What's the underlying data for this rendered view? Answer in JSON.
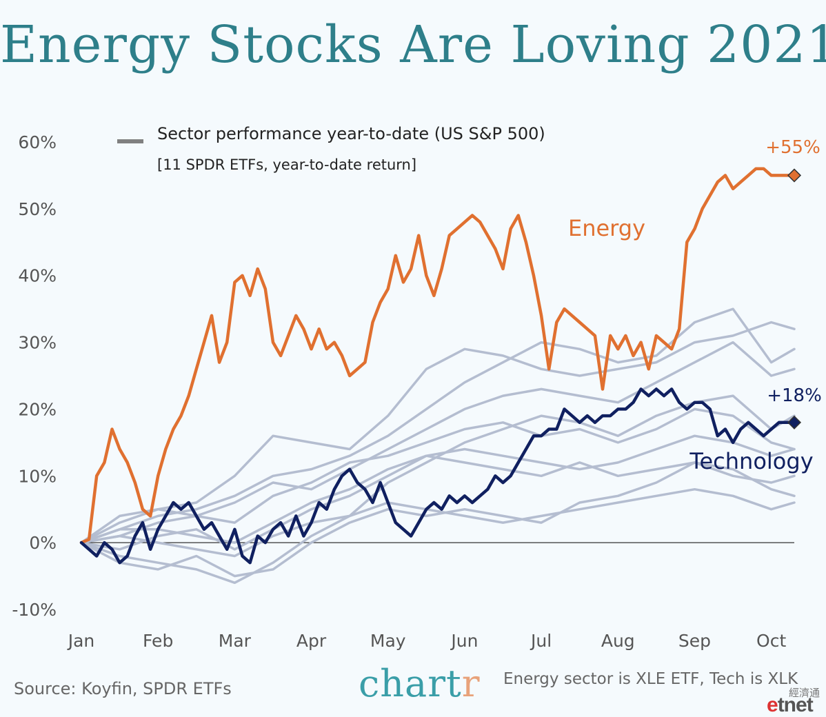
{
  "title": "Energy Stocks Are Loving 2021",
  "legend": {
    "main": "Sector performance year-to-date (US S&P 500)",
    "sub": "[11 SPDR ETFs, year-to-date return]"
  },
  "footer": {
    "source": "Source: Koyfin, SPDR ETFs",
    "brand_main": "chart",
    "brand_accent": "r",
    "note": "Energy sector is XLE ETF, Tech is XLK",
    "watermark_cn": "經濟通",
    "watermark_e": "e",
    "watermark_rest": "tnet"
  },
  "colors": {
    "energy": "#e07030",
    "technology": "#102060",
    "other": "#b4bdd0",
    "title": "#2e7f8a"
  },
  "chart_data": {
    "type": "line",
    "xlabel": "",
    "ylabel": "",
    "y_tick_labels": [
      "-10%",
      "0%",
      "10%",
      "20%",
      "30%",
      "40%",
      "50%",
      "60%"
    ],
    "y_ticks": [
      -10,
      0,
      10,
      20,
      30,
      40,
      50,
      60
    ],
    "ylim": [
      -10,
      60
    ],
    "x_tick_labels": [
      "Jan",
      "Feb",
      "Mar",
      "Apr",
      "May",
      "Jun",
      "Jul",
      "Aug",
      "Sep",
      "Oct"
    ],
    "x_ticks": [
      0,
      1,
      2,
      3,
      4,
      5,
      6,
      7,
      8,
      9
    ],
    "xlim": [
      0,
      9.3
    ],
    "grid": false,
    "zero_line": true,
    "highlighted": [
      {
        "name": "Energy",
        "color": "#e07030",
        "end_label": "+55%",
        "x": [
          0,
          0.1,
          0.2,
          0.3,
          0.4,
          0.5,
          0.6,
          0.7,
          0.8,
          0.9,
          1.0,
          1.1,
          1.2,
          1.3,
          1.4,
          1.5,
          1.6,
          1.7,
          1.8,
          1.9,
          2.0,
          2.1,
          2.2,
          2.3,
          2.4,
          2.5,
          2.6,
          2.7,
          2.8,
          2.9,
          3.0,
          3.1,
          3.2,
          3.3,
          3.4,
          3.5,
          3.6,
          3.7,
          3.8,
          3.9,
          4.0,
          4.1,
          4.2,
          4.3,
          4.4,
          4.5,
          4.6,
          4.7,
          4.8,
          4.9,
          5.0,
          5.1,
          5.2,
          5.3,
          5.4,
          5.5,
          5.6,
          5.7,
          5.8,
          5.9,
          6.0,
          6.1,
          6.2,
          6.3,
          6.4,
          6.5,
          6.6,
          6.7,
          6.8,
          6.9,
          7.0,
          7.1,
          7.2,
          7.3,
          7.4,
          7.5,
          7.6,
          7.7,
          7.8,
          7.9,
          8.0,
          8.1,
          8.2,
          8.3,
          8.4,
          8.5,
          8.6,
          8.7,
          8.8,
          8.9,
          9.0,
          9.1,
          9.2,
          9.3
        ],
        "values": [
          0,
          0.5,
          10,
          12,
          17,
          14,
          12,
          9,
          5,
          4,
          10,
          14,
          17,
          19,
          22,
          26,
          30,
          34,
          27,
          30,
          39,
          40,
          37,
          41,
          38,
          30,
          28,
          31,
          34,
          32,
          29,
          32,
          29,
          30,
          28,
          25,
          26,
          27,
          33,
          36,
          38,
          43,
          39,
          41,
          46,
          40,
          37,
          41,
          46,
          47,
          48,
          49,
          48,
          46,
          44,
          41,
          47,
          49,
          45,
          40,
          34,
          26,
          33,
          35,
          34,
          33,
          32,
          31,
          23,
          31,
          29,
          31,
          28,
          30,
          26,
          31,
          30,
          29,
          32,
          45,
          47,
          50,
          52,
          54,
          55,
          53,
          54,
          55,
          56,
          56,
          55,
          55,
          55,
          55
        ]
      },
      {
        "name": "Technology",
        "color": "#102060",
        "end_label": "+18%",
        "x": [
          0,
          0.1,
          0.2,
          0.3,
          0.4,
          0.5,
          0.6,
          0.7,
          0.8,
          0.9,
          1.0,
          1.1,
          1.2,
          1.3,
          1.4,
          1.5,
          1.6,
          1.7,
          1.8,
          1.9,
          2.0,
          2.1,
          2.2,
          2.3,
          2.4,
          2.5,
          2.6,
          2.7,
          2.8,
          2.9,
          3.0,
          3.1,
          3.2,
          3.3,
          3.4,
          3.5,
          3.6,
          3.7,
          3.8,
          3.9,
          4.0,
          4.1,
          4.2,
          4.3,
          4.4,
          4.5,
          4.6,
          4.7,
          4.8,
          4.9,
          5.0,
          5.1,
          5.2,
          5.3,
          5.4,
          5.5,
          5.6,
          5.7,
          5.8,
          5.9,
          6.0,
          6.1,
          6.2,
          6.3,
          6.4,
          6.5,
          6.6,
          6.7,
          6.8,
          6.9,
          7.0,
          7.1,
          7.2,
          7.3,
          7.4,
          7.5,
          7.6,
          7.7,
          7.8,
          7.9,
          8.0,
          8.1,
          8.2,
          8.3,
          8.4,
          8.5,
          8.6,
          8.7,
          8.8,
          8.9,
          9.0,
          9.1,
          9.2,
          9.3
        ],
        "values": [
          0,
          -1,
          -2,
          0,
          -1,
          -3,
          -2,
          1,
          3,
          -1,
          2,
          4,
          6,
          5,
          6,
          4,
          2,
          3,
          1,
          -1,
          2,
          -2,
          -3,
          1,
          0,
          2,
          3,
          1,
          4,
          1,
          3,
          6,
          5,
          8,
          10,
          11,
          9,
          8,
          6,
          9,
          6,
          3,
          2,
          1,
          3,
          5,
          6,
          5,
          7,
          6,
          7,
          6,
          7,
          8,
          10,
          9,
          10,
          12,
          14,
          16,
          16,
          17,
          17,
          20,
          19,
          18,
          19,
          18,
          19,
          19,
          20,
          20,
          21,
          23,
          22,
          23,
          22,
          23,
          21,
          20,
          21,
          21,
          20,
          16,
          17,
          15,
          17,
          18,
          17,
          16,
          17,
          18,
          18,
          18
        ]
      }
    ],
    "background_series": [
      {
        "x": [
          0,
          0.5,
          1.0,
          1.5,
          2.0,
          2.5,
          3.0,
          3.5,
          4.0,
          4.5,
          5.0,
          5.5,
          6.0,
          6.5,
          7.0,
          7.5,
          8.0,
          8.5,
          9.0,
          9.3
        ],
        "values": [
          0,
          3,
          5,
          6,
          10,
          16,
          15,
          14,
          19,
          26,
          29,
          28,
          26,
          25,
          26,
          27,
          30,
          31,
          33,
          32
        ]
      },
      {
        "x": [
          0,
          0.5,
          1.0,
          1.5,
          2.0,
          2.5,
          3.0,
          3.5,
          4.0,
          4.5,
          5.0,
          5.5,
          6.0,
          6.5,
          7.0,
          7.5,
          8.0,
          8.5,
          9.0,
          9.3
        ],
        "values": [
          0,
          2,
          4,
          5,
          7,
          10,
          11,
          13,
          16,
          20,
          24,
          27,
          30,
          29,
          27,
          28,
          33,
          35,
          27,
          29
        ]
      },
      {
        "x": [
          0,
          0.5,
          1.0,
          1.5,
          2.0,
          2.5,
          3.0,
          3.5,
          4.0,
          4.5,
          5.0,
          5.5,
          6.0,
          6.5,
          7.0,
          7.5,
          8.0,
          8.5,
          9.0,
          9.3
        ],
        "values": [
          0,
          4,
          5,
          4,
          6,
          9,
          8,
          11,
          14,
          17,
          20,
          22,
          23,
          22,
          21,
          24,
          27,
          30,
          25,
          26
        ]
      },
      {
        "x": [
          0,
          0.5,
          1.0,
          1.5,
          2.0,
          2.5,
          3.0,
          3.5,
          4.0,
          4.5,
          5.0,
          5.5,
          6.0,
          6.5,
          7.0,
          7.5,
          8.0,
          8.5,
          9.0,
          9.3
        ],
        "values": [
          0,
          -2,
          -3,
          -4,
          -6,
          -3,
          1,
          4,
          9,
          12,
          15,
          17,
          19,
          18,
          16,
          19,
          21,
          22,
          17,
          19
        ]
      },
      {
        "x": [
          0,
          0.5,
          1.0,
          1.5,
          2.0,
          2.5,
          3.0,
          3.5,
          4.0,
          4.5,
          5.0,
          5.5,
          6.0,
          6.5,
          7.0,
          7.5,
          8.0,
          8.5,
          9.0,
          9.3
        ],
        "values": [
          0,
          1,
          3,
          4,
          3,
          7,
          9,
          12,
          13,
          15,
          17,
          18,
          16,
          17,
          15,
          17,
          20,
          19,
          15,
          14
        ]
      },
      {
        "x": [
          0,
          0.5,
          1.0,
          1.5,
          2.0,
          2.5,
          3.0,
          3.5,
          4.0,
          4.5,
          5.0,
          5.5,
          6.0,
          6.5,
          7.0,
          7.5,
          8.0,
          8.5,
          9.0,
          9.3
        ],
        "values": [
          0,
          -1,
          1,
          2,
          -1,
          2,
          5,
          7,
          10,
          13,
          14,
          13,
          12,
          11,
          12,
          14,
          16,
          15,
          13,
          14
        ]
      },
      {
        "x": [
          0,
          0.5,
          1.0,
          1.5,
          2.0,
          2.5,
          3.0,
          3.5,
          4.0,
          4.5,
          5.0,
          5.5,
          6.0,
          6.5,
          7.0,
          7.5,
          8.0,
          8.5,
          9.0,
          9.3
        ],
        "values": [
          0,
          2,
          2,
          1,
          0,
          3,
          6,
          8,
          11,
          13,
          12,
          11,
          10,
          12,
          10,
          11,
          12,
          10,
          9,
          10
        ]
      },
      {
        "x": [
          0,
          0.5,
          1.0,
          1.5,
          2.0,
          2.5,
          3.0,
          3.5,
          4.0,
          4.5,
          5.0,
          5.5,
          6.0,
          6.5,
          7.0,
          7.5,
          8.0,
          8.5,
          9.0,
          9.3
        ],
        "values": [
          0,
          -3,
          -4,
          -2,
          -5,
          -4,
          0,
          3,
          5,
          4,
          5,
          4,
          3,
          6,
          7,
          9,
          12,
          11,
          8,
          7
        ]
      },
      {
        "x": [
          0,
          0.5,
          1.0,
          1.5,
          2.0,
          2.5,
          3.0,
          3.5,
          4.0,
          4.5,
          5.0,
          5.5,
          6.0,
          6.5,
          7.0,
          7.5,
          8.0,
          8.5,
          9.0,
          9.3
        ],
        "values": [
          0,
          1,
          0,
          -1,
          -2,
          1,
          3,
          4,
          6,
          5,
          4,
          3,
          4,
          5,
          6,
          7,
          8,
          7,
          5,
          6
        ]
      }
    ]
  }
}
